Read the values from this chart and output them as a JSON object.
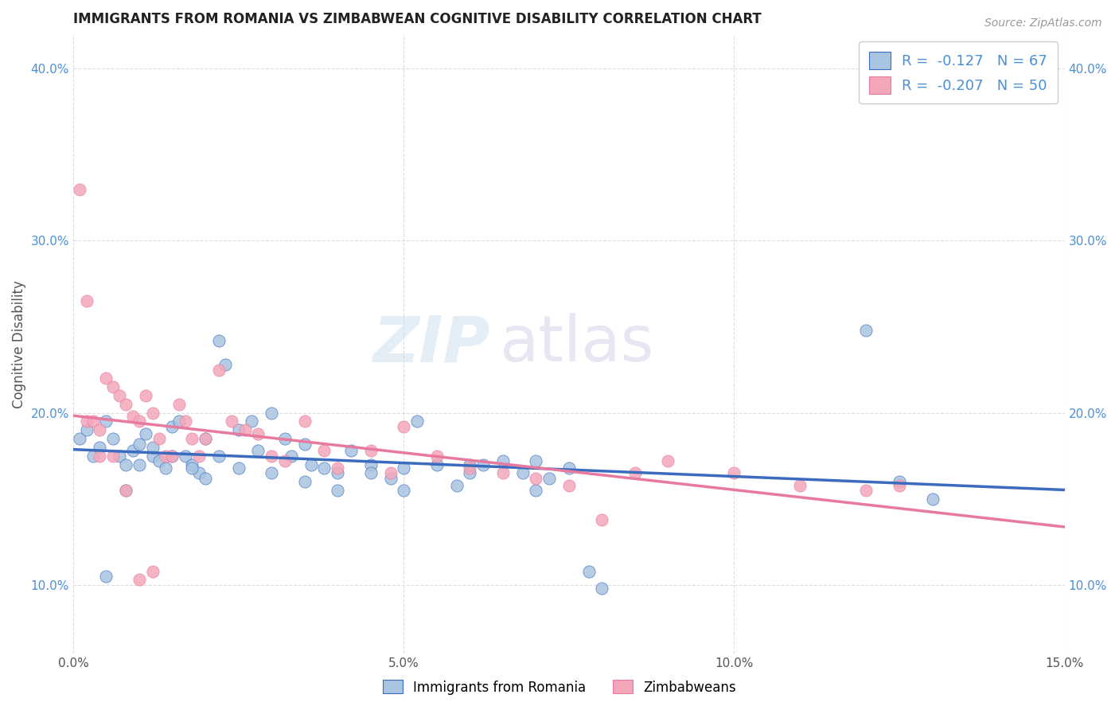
{
  "title": "IMMIGRANTS FROM ROMANIA VS ZIMBABWEAN COGNITIVE DISABILITY CORRELATION CHART",
  "source": "Source: ZipAtlas.com",
  "ylabel": "Cognitive Disability",
  "xlim": [
    0.0,
    0.15
  ],
  "ylim": [
    0.06,
    0.42
  ],
  "yticks": [
    0.1,
    0.2,
    0.3,
    0.4
  ],
  "ytick_labels": [
    "10.0%",
    "20.0%",
    "30.0%",
    "40.0%"
  ],
  "xticks": [
    0.0,
    0.05,
    0.1,
    0.15
  ],
  "xtick_labels": [
    "0.0%",
    "5.0%",
    "10.0%",
    "15.0%"
  ],
  "romania_color": "#a8c4e0",
  "zimbabwe_color": "#f4a7b9",
  "romania_line_color": "#3a6bbf",
  "zimbabwe_line_color": "#e87a9f",
  "watermark_zip": "ZIP",
  "watermark_atlas": "atlas",
  "romania_x": [
    0.001,
    0.002,
    0.003,
    0.004,
    0.005,
    0.006,
    0.007,
    0.008,
    0.009,
    0.01,
    0.011,
    0.012,
    0.013,
    0.014,
    0.015,
    0.016,
    0.017,
    0.018,
    0.019,
    0.02,
    0.022,
    0.023,
    0.025,
    0.027,
    0.028,
    0.03,
    0.032,
    0.033,
    0.035,
    0.036,
    0.038,
    0.04,
    0.042,
    0.045,
    0.048,
    0.05,
    0.052,
    0.055,
    0.058,
    0.06,
    0.062,
    0.065,
    0.068,
    0.07,
    0.072,
    0.075,
    0.078,
    0.08,
    0.005,
    0.008,
    0.01,
    0.012,
    0.015,
    0.018,
    0.02,
    0.022,
    0.025,
    0.03,
    0.035,
    0.04,
    0.045,
    0.05,
    0.06,
    0.07,
    0.12,
    0.125,
    0.13
  ],
  "romania_y": [
    0.185,
    0.19,
    0.175,
    0.18,
    0.195,
    0.185,
    0.175,
    0.17,
    0.178,
    0.182,
    0.188,
    0.175,
    0.172,
    0.168,
    0.192,
    0.195,
    0.175,
    0.17,
    0.165,
    0.185,
    0.242,
    0.228,
    0.19,
    0.195,
    0.178,
    0.2,
    0.185,
    0.175,
    0.182,
    0.17,
    0.168,
    0.165,
    0.178,
    0.17,
    0.162,
    0.168,
    0.195,
    0.17,
    0.158,
    0.165,
    0.17,
    0.172,
    0.165,
    0.155,
    0.162,
    0.168,
    0.108,
    0.098,
    0.105,
    0.155,
    0.17,
    0.18,
    0.175,
    0.168,
    0.162,
    0.175,
    0.168,
    0.165,
    0.16,
    0.155,
    0.165,
    0.155,
    0.17,
    0.172,
    0.248,
    0.16,
    0.15
  ],
  "zimbabwe_x": [
    0.001,
    0.002,
    0.003,
    0.004,
    0.005,
    0.006,
    0.007,
    0.008,
    0.009,
    0.01,
    0.011,
    0.012,
    0.013,
    0.014,
    0.015,
    0.016,
    0.017,
    0.018,
    0.019,
    0.02,
    0.022,
    0.024,
    0.026,
    0.028,
    0.03,
    0.032,
    0.035,
    0.038,
    0.04,
    0.045,
    0.048,
    0.05,
    0.055,
    0.06,
    0.065,
    0.07,
    0.075,
    0.08,
    0.085,
    0.09,
    0.1,
    0.11,
    0.12,
    0.125,
    0.002,
    0.004,
    0.006,
    0.008,
    0.01,
    0.012
  ],
  "zimbabwe_y": [
    0.33,
    0.195,
    0.195,
    0.19,
    0.22,
    0.215,
    0.21,
    0.205,
    0.198,
    0.195,
    0.21,
    0.2,
    0.185,
    0.175,
    0.175,
    0.205,
    0.195,
    0.185,
    0.175,
    0.185,
    0.225,
    0.195,
    0.19,
    0.188,
    0.175,
    0.172,
    0.195,
    0.178,
    0.168,
    0.178,
    0.165,
    0.192,
    0.175,
    0.168,
    0.165,
    0.162,
    0.158,
    0.138,
    0.165,
    0.172,
    0.165,
    0.158,
    0.155,
    0.158,
    0.265,
    0.175,
    0.175,
    0.155,
    0.103,
    0.108
  ]
}
